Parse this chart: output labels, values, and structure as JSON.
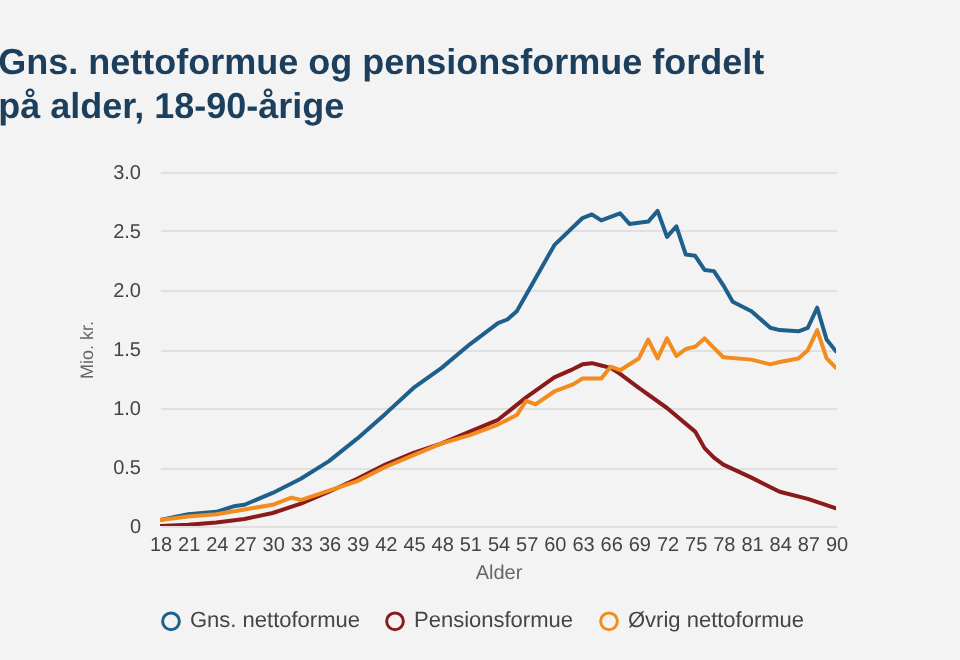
{
  "chart_data": {
    "type": "line",
    "title": "Gns. nettoformue og pensionsformue fordelt på alder, 18-90-årige",
    "xlabel": "Alder",
    "ylabel": "Mio. kr.",
    "xlim": [
      18,
      90
    ],
    "xticks": [
      18,
      21,
      24,
      27,
      30,
      33,
      36,
      39,
      42,
      45,
      48,
      51,
      54,
      57,
      60,
      63,
      66,
      69,
      72,
      75,
      78,
      81,
      84,
      87,
      90
    ],
    "ylim": [
      0,
      3
    ],
    "yticks": [
      0,
      0.5,
      {
        "value": 1,
        "label": "1.0"
      },
      1.5,
      {
        "value": 2,
        "label": "2.0"
      },
      2.5,
      {
        "value": 3,
        "label": "3.0"
      }
    ],
    "grid": "y",
    "legend": "bottom",
    "marker": "none",
    "line_style": "solid",
    "series": [
      {
        "name": "Gns. nettoformue",
        "color": "#1f5f8b",
        "x": [
          18,
          21,
          24,
          26,
          27,
          30,
          33,
          36,
          39,
          42,
          45,
          48,
          51,
          54,
          55,
          56,
          57,
          58,
          60,
          63,
          64,
          65,
          67,
          68,
          70,
          71,
          72,
          73,
          74,
          75,
          76,
          77,
          78,
          79,
          81,
          83,
          84,
          86,
          87,
          88,
          89,
          90
        ],
        "values": [
          0.05,
          0.1,
          0.12,
          0.17,
          0.18,
          0.28,
          0.4,
          0.55,
          0.74,
          0.95,
          1.17,
          1.34,
          1.54,
          1.72,
          1.75,
          1.82,
          1.96,
          2.1,
          2.38,
          2.61,
          2.64,
          2.59,
          2.65,
          2.56,
          2.58,
          2.67,
          2.45,
          2.54,
          2.3,
          2.29,
          2.17,
          2.16,
          2.04,
          1.9,
          1.82,
          1.68,
          1.66,
          1.65,
          1.68,
          1.85,
          1.58,
          1.48
        ]
      },
      {
        "name": "Pensionsformue",
        "color": "#8b1a1a",
        "x": [
          18,
          21,
          24,
          27,
          30,
          33,
          36,
          39,
          42,
          45,
          48,
          51,
          54,
          57,
          60,
          62,
          63,
          64,
          65,
          66,
          67,
          69,
          72,
          75,
          76,
          77,
          78,
          81,
          84,
          87,
          90
        ],
        "values": [
          0.0,
          0.01,
          0.03,
          0.06,
          0.11,
          0.19,
          0.29,
          0.4,
          0.52,
          0.62,
          0.7,
          0.8,
          0.9,
          1.09,
          1.26,
          1.33,
          1.37,
          1.38,
          1.36,
          1.34,
          1.29,
          1.17,
          1.0,
          0.8,
          0.66,
          0.58,
          0.52,
          0.41,
          0.29,
          0.23,
          0.15
        ]
      },
      {
        "name": "Øvrig nettoformue",
        "color": "#f28c1e",
        "x": [
          18,
          21,
          24,
          27,
          30,
          32,
          33,
          36,
          39,
          42,
          45,
          48,
          51,
          54,
          56,
          57,
          58,
          60,
          62,
          63,
          65,
          66,
          67,
          69,
          70,
          71,
          72,
          73,
          74,
          75,
          76,
          77,
          78,
          81,
          83,
          84,
          86,
          87,
          88,
          89,
          90
        ],
        "values": [
          0.05,
          0.08,
          0.1,
          0.14,
          0.18,
          0.24,
          0.22,
          0.3,
          0.38,
          0.5,
          0.6,
          0.7,
          0.77,
          0.86,
          0.94,
          1.06,
          1.03,
          1.14,
          1.2,
          1.25,
          1.25,
          1.35,
          1.32,
          1.42,
          1.58,
          1.42,
          1.59,
          1.44,
          1.5,
          1.52,
          1.59,
          1.51,
          1.43,
          1.41,
          1.37,
          1.39,
          1.42,
          1.49,
          1.66,
          1.42,
          1.34
        ]
      }
    ]
  }
}
